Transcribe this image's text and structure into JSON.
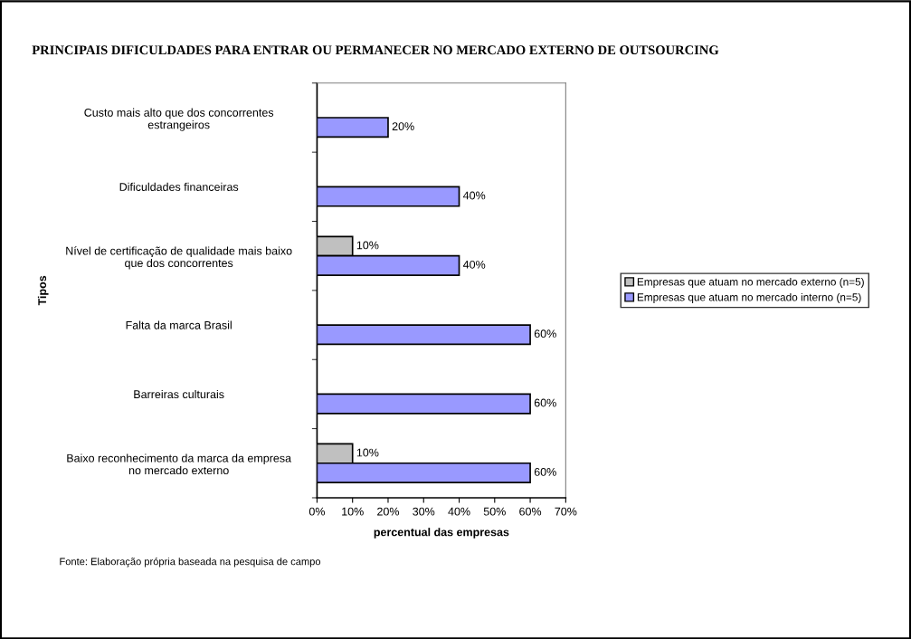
{
  "chart_data": {
    "type": "bar",
    "orientation": "horizontal",
    "title": "PRINCIPAIS DIFICULDADES PARA ENTRAR OU PERMANECER NO MERCADO EXTERNO DE OUTSOURCING",
    "xlabel": "percentual das empresas",
    "ylabel": "Tipos",
    "categories": [
      "Custo mais alto que dos concorrentes\nestrangeiros",
      "Dificuldades financeiras",
      "Nível de certificação de qualidade mais baixo\nque dos concorrentes",
      "Falta da marca Brasil",
      "Barreiras culturais",
      "Baixo reconhecimento da marca da empresa\nno mercado externo"
    ],
    "series": [
      {
        "name": "Empresas que atuam no mercado externo (n=5)",
        "color": "#c0c0c0",
        "values": [
          null,
          null,
          10,
          null,
          null,
          10
        ]
      },
      {
        "name": "Empresas que atuam no mercado interno (n=5)",
        "color": "#9999ff",
        "values": [
          20,
          40,
          40,
          60,
          60,
          60
        ]
      }
    ],
    "xlim": [
      0,
      70
    ],
    "xticks": [
      {
        "value": 0,
        "label": "0%"
      },
      {
        "value": 10,
        "label": "10%"
      },
      {
        "value": 20,
        "label": "20%"
      },
      {
        "value": 30,
        "label": "30%"
      },
      {
        "value": 40,
        "label": "40%"
      },
      {
        "value": 50,
        "label": "50%"
      },
      {
        "value": 60,
        "label": "60%"
      },
      {
        "value": 70,
        "label": "70%"
      }
    ],
    "value_labels": [
      [
        null,
        null,
        "10%",
        null,
        null,
        "10%"
      ],
      [
        "20%",
        "40%",
        "40%",
        "60%",
        "60%",
        "60%"
      ]
    ],
    "legend": "right",
    "annotations": [
      "Fonte: Elaboração própria baseada na pesquisa de campo"
    ]
  }
}
